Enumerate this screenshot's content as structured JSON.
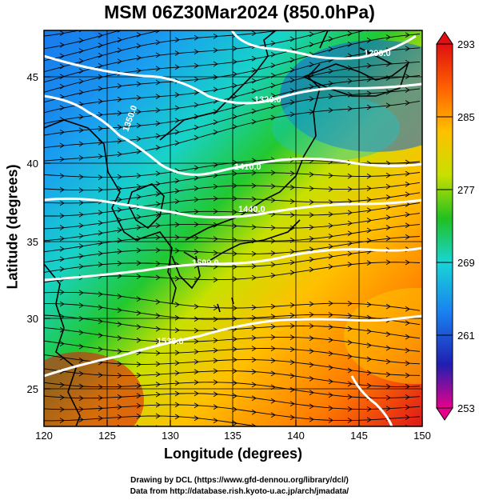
{
  "title": "MSM 06Z30Mar2024 (850.0hPa)",
  "x_axis": {
    "label": "Longitude (degrees)",
    "range": [
      120,
      150
    ],
    "ticks": [
      "120",
      "125",
      "130",
      "135",
      "140",
      "145",
      "150"
    ]
  },
  "y_axis": {
    "label": "Latitude  (degrees)",
    "range": [
      22.4,
      47.6
    ],
    "ticks": [
      "25",
      "30",
      "35",
      "40",
      "45"
    ]
  },
  "colorbar": {
    "range": [
      253,
      293
    ],
    "ticks": [
      "293",
      "285",
      "277",
      "269",
      "261",
      "253"
    ],
    "colors": [
      "#e8008c",
      "#1f1fb0",
      "#1a7ff0",
      "#17d6d6",
      "#20c020",
      "#c8e000",
      "#ffc000",
      "#ff6000",
      "#e01010"
    ]
  },
  "contour_labels": [
    "1290.0",
    "1320.0",
    "1350.0",
    "1410.0",
    "1440.0",
    "1500.0",
    "1530.0"
  ],
  "credits": {
    "line1": "Drawing by DCL (https://www.gfd-dennou.org/library/dcl/)",
    "line2": "Data from http://database.rish.kyoto-u.ac.jp/arch/jmadata/"
  }
}
